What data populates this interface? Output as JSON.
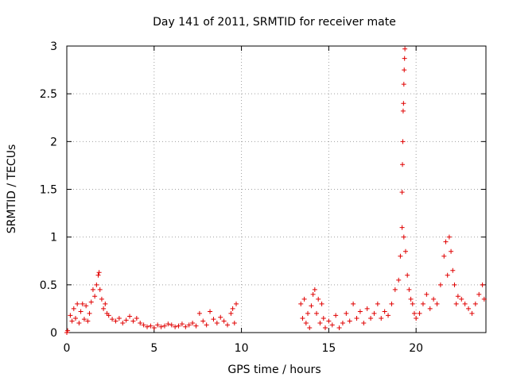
{
  "chart_data": {
    "type": "scatter",
    "title": "Day 141 of 2011, SRMTID for receiver mate",
    "xlabel": "GPS time / hours",
    "ylabel": "SRMTID / TECUs",
    "xlim": [
      0,
      24
    ],
    "ylim": [
      0,
      3
    ],
    "xticks": [
      0,
      5,
      10,
      15,
      20
    ],
    "xtick_labels": [
      "0",
      "5",
      "10",
      "15",
      "20"
    ],
    "yticks": [
      0,
      0.5,
      1,
      1.5,
      2,
      2.5,
      3
    ],
    "ytick_labels": [
      "0",
      "0.5",
      "1",
      "1.5",
      "2",
      "2.5",
      "3"
    ],
    "grid": true,
    "marker": "+",
    "color": "#e00000",
    "series": [
      {
        "name": "SRMTID",
        "points": [
          [
            0.0,
            0.0
          ],
          [
            0.05,
            0.02
          ],
          [
            0.2,
            0.18
          ],
          [
            0.3,
            0.12
          ],
          [
            0.4,
            0.25
          ],
          [
            0.5,
            0.15
          ],
          [
            0.6,
            0.3
          ],
          [
            0.7,
            0.1
          ],
          [
            0.8,
            0.22
          ],
          [
            0.9,
            0.3
          ],
          [
            1.0,
            0.14
          ],
          [
            1.1,
            0.28
          ],
          [
            1.2,
            0.12
          ],
          [
            1.3,
            0.2
          ],
          [
            1.4,
            0.32
          ],
          [
            1.5,
            0.45
          ],
          [
            1.6,
            0.38
          ],
          [
            1.7,
            0.5
          ],
          [
            1.8,
            0.6
          ],
          [
            1.85,
            0.63
          ],
          [
            1.9,
            0.45
          ],
          [
            2.0,
            0.35
          ],
          [
            2.1,
            0.25
          ],
          [
            2.2,
            0.3
          ],
          [
            2.3,
            0.2
          ],
          [
            2.4,
            0.18
          ],
          [
            2.6,
            0.14
          ],
          [
            2.8,
            0.12
          ],
          [
            3.0,
            0.15
          ],
          [
            3.2,
            0.1
          ],
          [
            3.4,
            0.13
          ],
          [
            3.6,
            0.17
          ],
          [
            3.8,
            0.12
          ],
          [
            4.0,
            0.15
          ],
          [
            4.2,
            0.1
          ],
          [
            4.4,
            0.08
          ],
          [
            4.6,
            0.06
          ],
          [
            4.8,
            0.07
          ],
          [
            5.0,
            0.05
          ],
          [
            5.2,
            0.08
          ],
          [
            5.4,
            0.06
          ],
          [
            5.6,
            0.07
          ],
          [
            5.8,
            0.09
          ],
          [
            6.0,
            0.08
          ],
          [
            6.2,
            0.06
          ],
          [
            6.4,
            0.07
          ],
          [
            6.6,
            0.09
          ],
          [
            6.8,
            0.06
          ],
          [
            7.0,
            0.08
          ],
          [
            7.2,
            0.1
          ],
          [
            7.4,
            0.07
          ],
          [
            7.6,
            0.2
          ],
          [
            7.8,
            0.12
          ],
          [
            8.0,
            0.08
          ],
          [
            8.2,
            0.22
          ],
          [
            8.4,
            0.14
          ],
          [
            8.6,
            0.1
          ],
          [
            8.8,
            0.16
          ],
          [
            9.0,
            0.12
          ],
          [
            9.2,
            0.08
          ],
          [
            9.4,
            0.2
          ],
          [
            9.5,
            0.25
          ],
          [
            9.6,
            0.1
          ],
          [
            9.7,
            0.3
          ],
          [
            13.4,
            0.3
          ],
          [
            13.5,
            0.15
          ],
          [
            13.6,
            0.35
          ],
          [
            13.7,
            0.1
          ],
          [
            13.8,
            0.2
          ],
          [
            13.9,
            0.05
          ],
          [
            14.0,
            0.28
          ],
          [
            14.1,
            0.4
          ],
          [
            14.2,
            0.45
          ],
          [
            14.3,
            0.2
          ],
          [
            14.4,
            0.35
          ],
          [
            14.5,
            0.1
          ],
          [
            14.6,
            0.3
          ],
          [
            14.7,
            0.15
          ],
          [
            14.8,
            0.05
          ],
          [
            15.0,
            0.12
          ],
          [
            15.2,
            0.08
          ],
          [
            15.4,
            0.18
          ],
          [
            15.6,
            0.05
          ],
          [
            15.8,
            0.1
          ],
          [
            16.0,
            0.2
          ],
          [
            16.2,
            0.12
          ],
          [
            16.4,
            0.3
          ],
          [
            16.6,
            0.15
          ],
          [
            16.8,
            0.22
          ],
          [
            17.0,
            0.1
          ],
          [
            17.2,
            0.25
          ],
          [
            17.4,
            0.15
          ],
          [
            17.6,
            0.2
          ],
          [
            17.8,
            0.3
          ],
          [
            18.0,
            0.15
          ],
          [
            18.2,
            0.22
          ],
          [
            18.4,
            0.18
          ],
          [
            18.6,
            0.3
          ],
          [
            18.8,
            0.45
          ],
          [
            19.0,
            0.55
          ],
          [
            19.1,
            0.8
          ],
          [
            19.2,
            1.1
          ],
          [
            19.3,
            1.0
          ],
          [
            19.4,
            0.85
          ],
          [
            19.5,
            0.6
          ],
          [
            19.6,
            0.45
          ],
          [
            19.7,
            0.35
          ],
          [
            19.8,
            0.3
          ],
          [
            19.9,
            0.2
          ],
          [
            20.0,
            0.15
          ],
          [
            19.2,
            1.47
          ],
          [
            19.22,
            1.76
          ],
          [
            19.24,
            2.0
          ],
          [
            19.26,
            2.32
          ],
          [
            19.28,
            2.4
          ],
          [
            19.3,
            2.6
          ],
          [
            19.32,
            2.75
          ],
          [
            19.34,
            2.87
          ],
          [
            19.36,
            2.97
          ],
          [
            20.2,
            0.2
          ],
          [
            20.4,
            0.3
          ],
          [
            20.6,
            0.4
          ],
          [
            20.8,
            0.25
          ],
          [
            21.0,
            0.35
          ],
          [
            21.2,
            0.3
          ],
          [
            21.4,
            0.5
          ],
          [
            21.6,
            0.8
          ],
          [
            21.7,
            0.95
          ],
          [
            21.8,
            0.6
          ],
          [
            21.9,
            1.0
          ],
          [
            22.0,
            0.85
          ],
          [
            22.1,
            0.65
          ],
          [
            22.2,
            0.5
          ],
          [
            22.3,
            0.3
          ],
          [
            22.4,
            0.38
          ],
          [
            22.6,
            0.35
          ],
          [
            22.8,
            0.3
          ],
          [
            23.0,
            0.25
          ],
          [
            23.2,
            0.2
          ],
          [
            23.4,
            0.3
          ],
          [
            23.6,
            0.4
          ],
          [
            23.8,
            0.5
          ],
          [
            23.9,
            0.35
          ]
        ]
      }
    ]
  }
}
